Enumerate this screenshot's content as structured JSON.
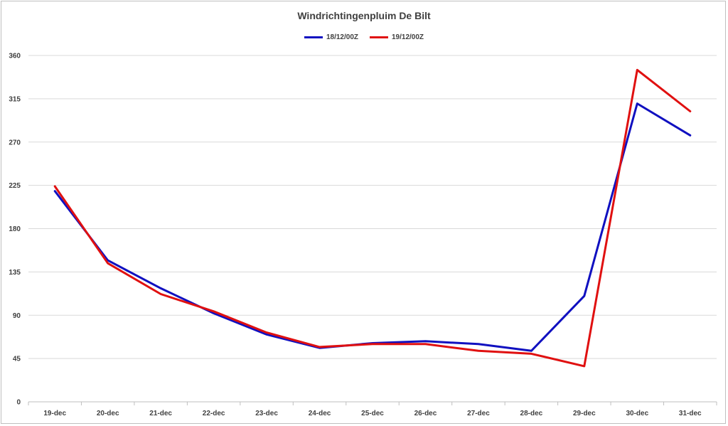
{
  "chart_data": {
    "type": "line",
    "title": "Windrichtingenpluim De Bilt",
    "xlabel": "",
    "ylabel": "",
    "categories": [
      "19-dec",
      "20-dec",
      "21-dec",
      "22-dec",
      "23-dec",
      "24-dec",
      "25-dec",
      "26-dec",
      "27-dec",
      "28-dec",
      "29-dec",
      "30-dec",
      "31-dec"
    ],
    "yticks": [
      0,
      45,
      90,
      135,
      180,
      225,
      270,
      315,
      360
    ],
    "ylim": [
      0,
      360
    ],
    "grid": true,
    "legend_position": "top",
    "series": [
      {
        "name": "18/12/00Z",
        "color": "#1010c0",
        "values": [
          219,
          147,
          118,
          92,
          70,
          56,
          61,
          63,
          60,
          53,
          110,
          310,
          277
        ]
      },
      {
        "name": "19/12/00Z",
        "color": "#e01010",
        "values": [
          224,
          144,
          112,
          94,
          72,
          57,
          60,
          60,
          53,
          50,
          37,
          345,
          302
        ]
      }
    ]
  }
}
